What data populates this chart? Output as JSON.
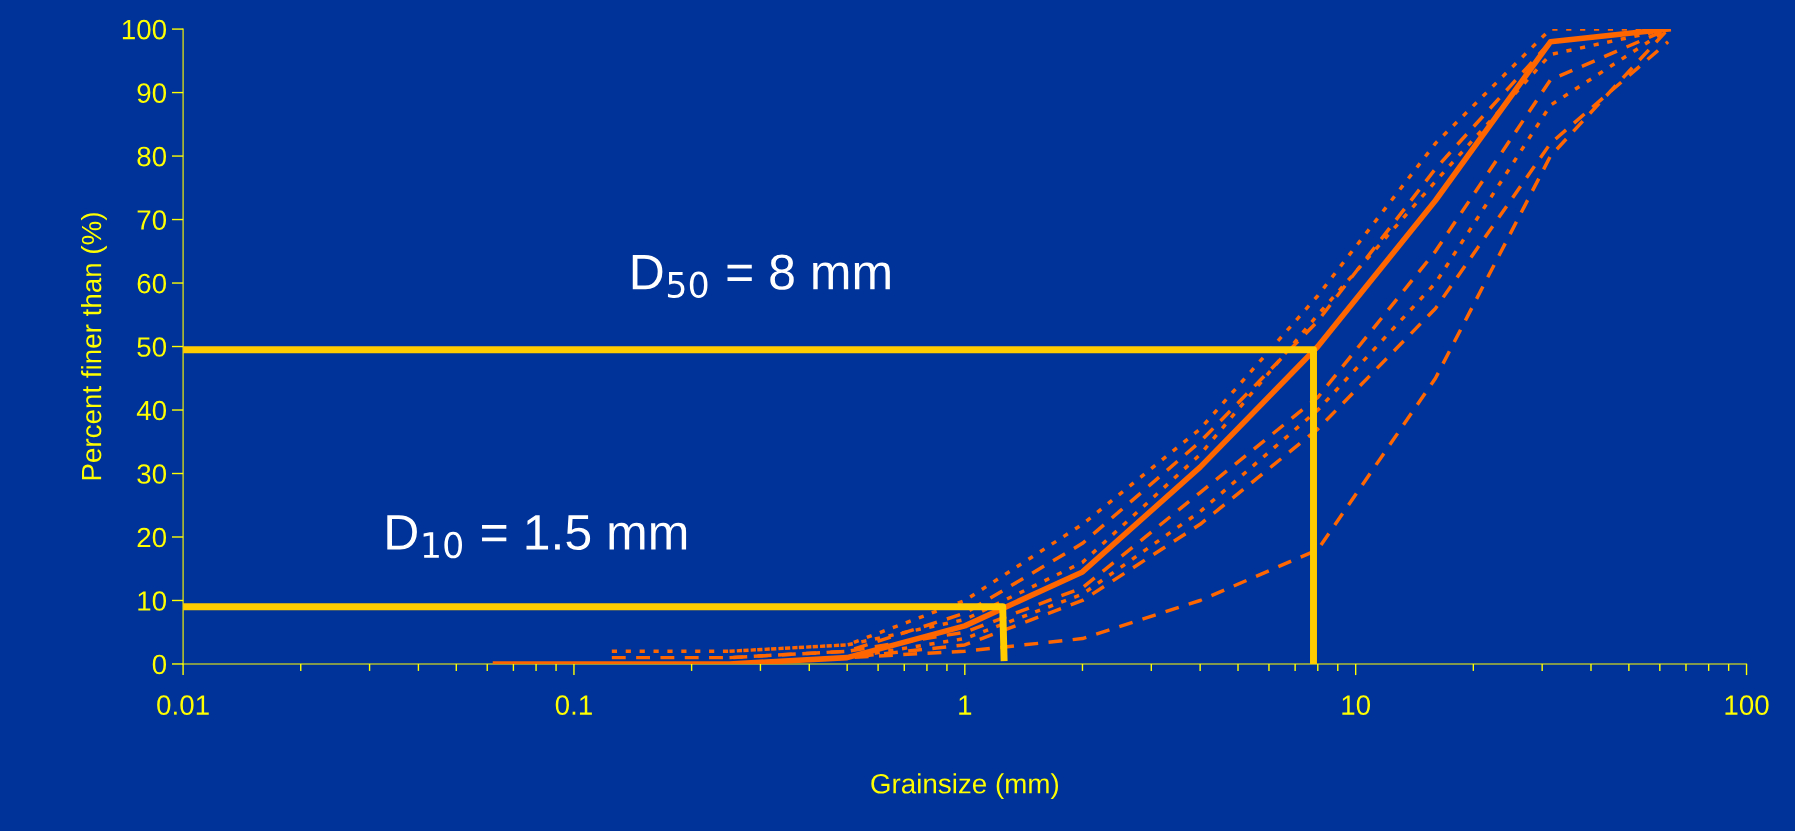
{
  "chart_data": {
    "type": "line",
    "xlabel": "Grainsize (mm)",
    "ylabel": "Percent finer than (%)",
    "log": "x",
    "xlim": [
      0.01,
      100
    ],
    "xticks": [
      0.01,
      0.1,
      1,
      10,
      100
    ],
    "ylim": [
      0,
      100
    ],
    "yticks": [
      0,
      10,
      20,
      30,
      40,
      50,
      60,
      70,
      80,
      90,
      100
    ],
    "grid": false,
    "legend": false,
    "marker": "none",
    "annotations": [
      "D$_{10}$ = 1.5 mm",
      "D$_{50}$ = 8 mm"
    ],
    "series": [
      {
        "color": "#ff6600",
        "line_style": "dotted",
        "x": [
          0.25,
          0.5,
          1,
          2,
          4,
          8,
          16,
          31.5,
          63
        ],
        "values": [
          2,
          3,
          10,
          22,
          37,
          58,
          82,
          100,
          100
        ]
      },
      {
        "color": "#ff6600",
        "line_style": "dashed",
        "x": [
          0.125,
          0.25,
          0.5,
          1,
          2,
          4,
          8,
          16,
          31.5,
          63
        ],
        "values": [
          1,
          1,
          2,
          8,
          19,
          35,
          54,
          78,
          98,
          100
        ]
      },
      {
        "color": "#ff6600",
        "line_style": "dotted",
        "x": [
          0.125,
          0.25,
          0.5,
          1,
          2,
          4,
          8,
          16,
          31.5,
          63
        ],
        "values": [
          2,
          2,
          3,
          7,
          16,
          33,
          55,
          76,
          96,
          100
        ]
      },
      {
        "color": "#ff6600",
        "line_style": "dashed",
        "x": [
          0.25,
          0.5,
          1,
          2,
          4,
          8,
          16,
          31.5,
          63
        ],
        "values": [
          1,
          2,
          5,
          12,
          27,
          42,
          65,
          92,
          100
        ]
      },
      {
        "color": "#ff6600",
        "line_style": "dotted",
        "x": [
          0.5,
          1,
          2,
          4,
          8,
          16,
          31.5,
          63
        ],
        "values": [
          1,
          4,
          11,
          24,
          40,
          60,
          88,
          100
        ]
      },
      {
        "color": "#ff6600",
        "line_style": "dashed",
        "x": [
          0.063,
          0.125,
          0.25,
          0.5,
          1,
          2,
          4,
          8,
          16,
          31.5,
          63
        ],
        "values": [
          0,
          0,
          0,
          1,
          3,
          10,
          22,
          37,
          56,
          82,
          98
        ]
      },
      {
        "color": "#ff6600",
        "line_style": "dashed",
        "x": [
          0.125,
          0.25,
          0.5,
          1,
          2,
          4,
          8,
          16,
          31.5,
          63
        ],
        "values": [
          0,
          0,
          1,
          2,
          4,
          10,
          18,
          45,
          80,
          100
        ]
      },
      {
        "color": "#ff6600",
        "line_style": "solid",
        "x": [
          0.063,
          0.125,
          0.25,
          0.5,
          1,
          2,
          4,
          8,
          16,
          31.5,
          63
        ],
        "values": [
          0,
          0,
          0,
          1,
          6,
          14.5,
          31,
          50,
          73,
          98,
          100
        ]
      },
      {
        "color": "#ffcc00",
        "line_style": "solid",
        "x": [
          0.01,
          1.25,
          1.26
        ],
        "values": [
          9,
          9,
          1
        ]
      },
      {
        "color": "#ffcc00",
        "line_style": "solid",
        "x": [
          0.01,
          7.8,
          7.8
        ],
        "values": [
          49.5,
          49.5,
          0
        ]
      }
    ]
  }
}
